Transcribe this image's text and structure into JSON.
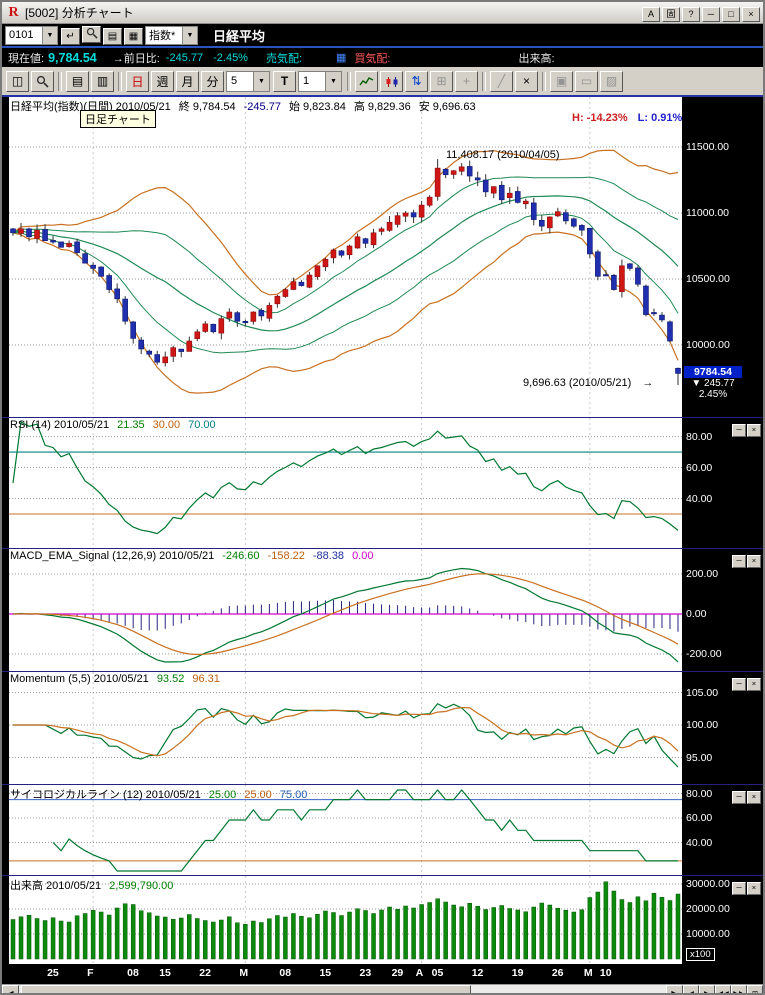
{
  "window": {
    "title": "[5002] 分析チャート",
    "titlebar_buttons": [
      {
        "name": "font-button",
        "label": "A"
      },
      {
        "name": "pin-window-button",
        "label": "固"
      },
      {
        "name": "help-button",
        "label": "?"
      },
      {
        "name": "minimize-button",
        "label": "─"
      },
      {
        "name": "maximize-button",
        "label": "□"
      },
      {
        "name": "close-button",
        "label": "×"
      }
    ]
  },
  "quote_bar": {
    "code_combo": "0101",
    "index_combo": "指数*",
    "instrument": "日経平均",
    "icons": [
      {
        "name": "apply-code-icon",
        "glyph": "↵"
      },
      {
        "name": "search-icon",
        "svg": true
      },
      {
        "name": "edit-list-icon",
        "glyph": "▤"
      },
      {
        "name": "register-list-icon",
        "glyph": "▦"
      }
    ],
    "row2": {
      "genzaine_label": "現在値:",
      "price": "9,784.54",
      "zenjit_label": "→前日比:",
      "change": "-245.77",
      "change_pct": "-2.45%",
      "uri_label": "売気配:",
      "kai_label": "買気配:",
      "dekidaka_label": "出来高:"
    }
  },
  "toolbar": {
    "items": [
      {
        "type": "icon",
        "name": "new-window-icon",
        "glyph": "◫"
      },
      {
        "type": "svg",
        "name": "zoom-icon"
      },
      {
        "type": "sep"
      },
      {
        "type": "icon",
        "name": "copy-chart-icon",
        "glyph": "▤"
      },
      {
        "type": "icon",
        "name": "save-chart-icon",
        "glyph": "▥"
      },
      {
        "type": "sep"
      },
      {
        "type": "button",
        "name": "period-day-button",
        "label": "日",
        "color": "#cc0000",
        "active": true
      },
      {
        "type": "button",
        "name": "period-week-button",
        "label": "週"
      },
      {
        "type": "button",
        "name": "period-month-button",
        "label": "月"
      },
      {
        "type": "button",
        "name": "period-minute-button",
        "label": "分"
      },
      {
        "type": "combo",
        "name": "minute-interval-select",
        "value": "5"
      },
      {
        "type": "button",
        "name": "tick-button",
        "label": "T",
        "bold": true
      },
      {
        "type": "combo",
        "name": "bar-count-select",
        "value": "1"
      },
      {
        "type": "sep"
      },
      {
        "type": "svg",
        "name": "line-chart-icon"
      },
      {
        "type": "svg",
        "name": "candlestick-chart-icon"
      },
      {
        "type": "icon",
        "name": "volume-overlay-icon",
        "glyph": "⇅",
        "color": "#0040cc"
      },
      {
        "type": "icon",
        "name": "grid-toggle-icon",
        "glyph": "⊞",
        "disabled": true
      },
      {
        "type": "icon",
        "name": "crosshair-icon",
        "glyph": "+",
        "disabled": true
      },
      {
        "type": "sep"
      },
      {
        "type": "icon",
        "name": "trendline-tool-icon",
        "glyph": "╱",
        "disabled": true
      },
      {
        "type": "icon",
        "name": "delete-drawing-icon",
        "glyph": "×"
      },
      {
        "type": "sep"
      },
      {
        "type": "icon",
        "name": "screenshot-icon",
        "glyph": "▣",
        "disabled": true
      },
      {
        "type": "icon",
        "name": "comment-icon",
        "glyph": "▭",
        "disabled": true
      },
      {
        "type": "icon",
        "name": "settings-icon",
        "glyph": "▨",
        "disabled": true
      }
    ]
  },
  "tooltip": "日足チャート",
  "main_chart": {
    "annotation_high": "11,408.17 (2010/04/05)",
    "annotation_low": "9,696.63 (2010/05/21)",
    "price_marker": {
      "price": "9784.54",
      "change": "245.77",
      "pct": "2.45%"
    },
    "hl_segments": [
      {
        "text": "H: -14.23%",
        "color": "#cc2020"
      },
      {
        "text": "L: 0.91%",
        "color": "#2020cc"
      }
    ]
  },
  "panels": [
    {
      "id": "main",
      "segments": [
        {
          "text": "日経平均(指数)(日間) 2010/05/21"
        },
        {
          "text": "終 9,784.54"
        },
        {
          "text": "-245.77",
          "color": "#000080"
        },
        {
          "text": "始 9,823.84"
        },
        {
          "text": "高 9,829.36"
        },
        {
          "text": "安 9,696.63"
        }
      ],
      "axis": [
        "11500.00",
        "11000.00",
        "10500.00",
        "10000.00"
      ]
    },
    {
      "id": "rsi",
      "segments": [
        {
          "text": "RSI (14) 2010/05/21"
        },
        {
          "text": "21.35",
          "color": "#008000"
        },
        {
          "text": "30.00",
          "color": "#c06010"
        },
        {
          "text": "70.00",
          "color": "#008080"
        }
      ],
      "axis": [
        "80.00",
        "60.00",
        "40.00"
      ]
    },
    {
      "id": "macd",
      "segments": [
        {
          "text": "MACD_EMA_Signal (12,26,9) 2010/05/21"
        },
        {
          "text": "-246.60",
          "color": "#008000"
        },
        {
          "text": "-158.22",
          "color": "#c06010"
        },
        {
          "text": "-88.38",
          "color": "#2030a0"
        },
        {
          "text": "0.00",
          "color": "#d000d0"
        }
      ],
      "axis": [
        "200.00",
        "0.00",
        "-200.00"
      ]
    },
    {
      "id": "momentum",
      "segments": [
        {
          "text": "Momentum (5,5) 2010/05/21"
        },
        {
          "text": "93.52",
          "color": "#008000"
        },
        {
          "text": "96.31",
          "color": "#c06010"
        }
      ],
      "axis": [
        "105.00",
        "100.00",
        "95.00"
      ]
    },
    {
      "id": "psych",
      "segments": [
        {
          "text": "サイコロジカルライン (12) 2010/05/21"
        },
        {
          "text": "25.00",
          "color": "#008000"
        },
        {
          "text": "25.00",
          "color": "#c06010"
        },
        {
          "text": "75.00",
          "color": "#2060b0"
        }
      ],
      "axis": [
        "80.00",
        "60.00",
        "40.00"
      ]
    },
    {
      "id": "volume",
      "segments": [
        {
          "text": "出来高 2010/05/21"
        },
        {
          "text": "2,599,790.00",
          "color": "#008000"
        }
      ],
      "axis": [
        "30000.00",
        "20000.00",
        "10000.00"
      ],
      "unit": "x100"
    }
  ],
  "scrollbar": {
    "left_label": "◀",
    "right_label": "▶",
    "nav_buttons": [
      {
        "name": "bar-back-button",
        "label": "◀"
      },
      {
        "name": "bar-forward-button",
        "label": "▶"
      },
      {
        "name": "jump-oldest-button",
        "label": "◀◀"
      },
      {
        "name": "jump-latest-button",
        "label": "▶▶"
      },
      {
        "name": "restore-layout-button",
        "label": "⊞"
      }
    ]
  },
  "chart_data": {
    "type": "candlestick",
    "symbol": "日経平均 (Nikkei 225, index, daily)",
    "date": "2010/05/21",
    "ohlc_last": {
      "open": 9823.84,
      "high": 9829.36,
      "low": 9696.63,
      "close": 9784.54
    },
    "change_last": -245.77,
    "change_pct_last": -2.45,
    "period_high": {
      "value": 11408.17,
      "date": "2010/04/05",
      "index": 53
    },
    "period_low": {
      "value": 9696.63,
      "date": "2010/05/21"
    },
    "h_pct_from_high": -14.23,
    "l_pct_from_low": 0.91,
    "y_gridlines_main": [
      11500,
      11000,
      10500,
      10000
    ],
    "closes": [
      10850,
      10880,
      10820,
      10870,
      10790,
      10780,
      10740,
      10770,
      10700,
      10620,
      10580,
      10520,
      10420,
      10350,
      10180,
      10050,
      9970,
      9930,
      9870,
      9910,
      9980,
      9950,
      10030,
      10100,
      10160,
      10100,
      10200,
      10250,
      10180,
      10170,
      10250,
      10220,
      10300,
      10370,
      10420,
      10480,
      10450,
      10530,
      10600,
      10650,
      10720,
      10680,
      10750,
      10820,
      10770,
      10850,
      10880,
      10930,
      10980,
      11000,
      10970,
      11060,
      11120,
      11340,
      11290,
      11320,
      11350,
      11280,
      11250,
      11160,
      11200,
      11100,
      11150,
      11080,
      11090,
      10950,
      10900,
      10970,
      11010,
      10940,
      10900,
      10870,
      10690,
      10520,
      10530,
      10420,
      10600,
      10580,
      10460,
      10230,
      10240,
      10190,
      10030,
      9784.54
    ],
    "volumes_x100": [
      15800,
      16900,
      17500,
      16200,
      15400,
      16500,
      15200,
      14800,
      17300,
      18200,
      19500,
      18800,
      17600,
      20400,
      22100,
      21800,
      19300,
      18500,
      17200,
      16800,
      15900,
      16400,
      17800,
      16200,
      15400,
      14800,
      15600,
      16900,
      14500,
      13900,
      15200,
      14600,
      16100,
      17400,
      16800,
      18200,
      17100,
      16500,
      17900,
      19200,
      18600,
      17400,
      18800,
      20100,
      19400,
      18200,
      19600,
      20800,
      19900,
      21200,
      20400,
      21800,
      22600,
      24100,
      22800,
      21600,
      20900,
      22300,
      21100,
      19800,
      20600,
      21400,
      20200,
      19600,
      18900,
      20800,
      22400,
      21600,
      20300,
      19500,
      18800,
      19700,
      24600,
      26800,
      30900,
      27200,
      23800,
      22600,
      24900,
      23300,
      26300,
      24700,
      23400,
      25998
    ],
    "x_ticks": [
      {
        "i": 5,
        "label": "25"
      },
      {
        "i": 10,
        "label": "F",
        "month": true
      },
      {
        "i": 15,
        "label": "08"
      },
      {
        "i": 19,
        "label": "15"
      },
      {
        "i": 24,
        "label": "22"
      },
      {
        "i": 29,
        "label": "M",
        "month": true
      },
      {
        "i": 34,
        "label": "08"
      },
      {
        "i": 39,
        "label": "15"
      },
      {
        "i": 44,
        "label": "23"
      },
      {
        "i": 48,
        "label": "29"
      },
      {
        "i": 51,
        "label": "A",
        "month": true
      },
      {
        "i": 53,
        "label": "05"
      },
      {
        "i": 58,
        "label": "12"
      },
      {
        "i": 63,
        "label": "19"
      },
      {
        "i": 68,
        "label": "26"
      },
      {
        "i": 72,
        "label": "M",
        "month": true
      },
      {
        "i": 74,
        "label": "10"
      }
    ],
    "indicators": {
      "bollinger": {
        "period": 20,
        "bands": [
          1,
          2
        ]
      },
      "rsi": {
        "period": 14,
        "last": 21.35,
        "lower_line": 30.0,
        "upper_line": 70.0
      },
      "macd": {
        "params": [
          12,
          26,
          9
        ],
        "last_macd": -246.6,
        "last_signal": -158.22,
        "last_hist": -88.38,
        "zero_line": 0.0
      },
      "momentum": {
        "params": [
          5,
          5
        ],
        "last": 93.52,
        "last_smoothed": 96.31
      },
      "psychological": {
        "period": 12,
        "last": 25.0,
        "lower_line": 25.0,
        "upper_line": 75.0
      },
      "volume_last": 2599790.0
    }
  }
}
